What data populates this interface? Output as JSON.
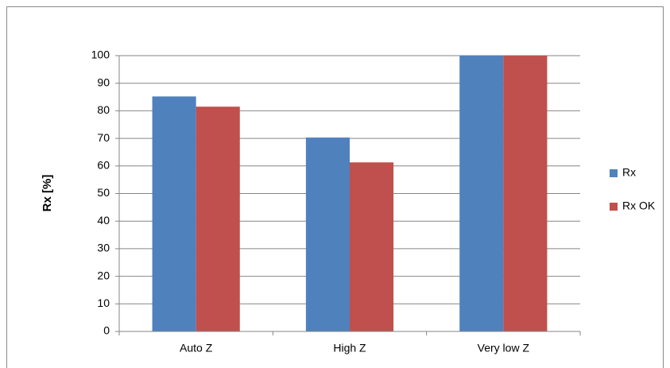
{
  "chart_data": {
    "type": "bar",
    "y_label": "Rx [%]",
    "categories": [
      "Auto Z",
      "High Z",
      "Very low Z"
    ],
    "series": [
      {
        "name": "Rx",
        "color": "#4f81bd",
        "values": [
          85.2,
          70.3,
          100
        ]
      },
      {
        "name": "Rx OK",
        "color": "#c0504d",
        "values": [
          81.5,
          61.3,
          100
        ]
      }
    ],
    "ylim": [
      0,
      100
    ],
    "yticks": [
      0,
      10,
      20,
      30,
      40,
      50,
      60,
      70,
      80,
      90,
      100
    ],
    "grid": true,
    "legend": "right"
  }
}
